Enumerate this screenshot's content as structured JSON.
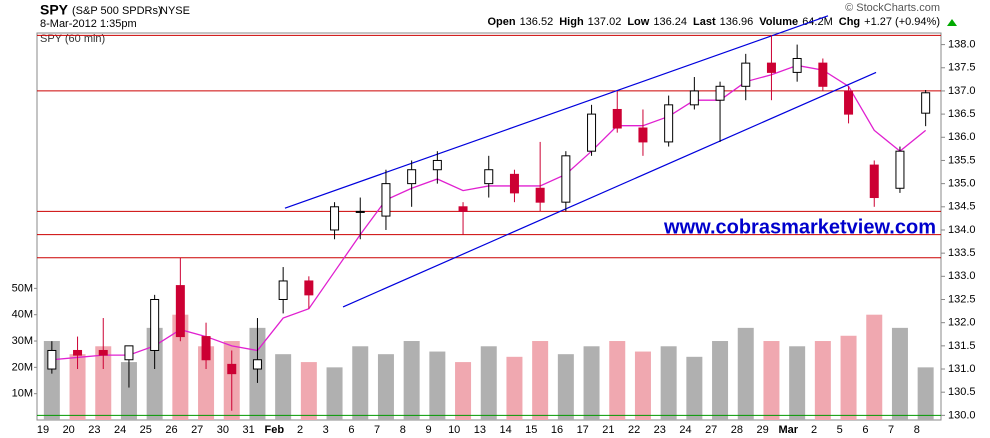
{
  "header": {
    "symbol": "SPY",
    "name": "(S&P 500 SPDRs)",
    "exchange": "NYSE",
    "date": "8-Mar-2012 1:35pm",
    "source": "© StockCharts.com",
    "quote": [
      {
        "label": "Open",
        "value": "136.52"
      },
      {
        "label": "High",
        "value": "137.02"
      },
      {
        "label": "Low",
        "value": "136.24"
      },
      {
        "label": "Last",
        "value": "136.96"
      },
      {
        "label": "Volume",
        "value": "64.2M"
      },
      {
        "label": "Chg",
        "value": "+1.27 (+0.94%)"
      }
    ]
  },
  "chart_data": {
    "type": "candlestick",
    "title": "SPY (60 min)",
    "watermark": "www.cobrasmarketview.com",
    "categories": [
      "19",
      "20",
      "23",
      "24",
      "25",
      "26",
      "27",
      "30",
      "31",
      "Feb",
      "2",
      "3",
      "6",
      "7",
      "8",
      "9",
      "10",
      "13",
      "14",
      "15",
      "16",
      "17",
      "21",
      "22",
      "23",
      "24",
      "27",
      "28",
      "29",
      "Mar",
      "2",
      "5",
      "6",
      "7",
      "8"
    ],
    "open": [
      131.0,
      131.4,
      131.4,
      131.2,
      131.4,
      132.8,
      131.7,
      131.1,
      131.0,
      132.5,
      132.9,
      134.0,
      134.4,
      134.3,
      135.0,
      135.3,
      134.5,
      135.0,
      135.2,
      134.9,
      134.6,
      135.7,
      136.6,
      136.2,
      135.9,
      136.7,
      136.8,
      137.1,
      137.6,
      137.4,
      137.6,
      137.0,
      135.4,
      134.9,
      136.52
    ],
    "high": [
      131.6,
      131.7,
      132.1,
      131.5,
      132.6,
      133.4,
      132.0,
      131.4,
      132.1,
      133.2,
      133.0,
      134.6,
      134.7,
      135.3,
      135.5,
      135.7,
      134.6,
      135.6,
      135.3,
      135.9,
      135.7,
      136.7,
      137.0,
      136.6,
      136.9,
      137.3,
      137.2,
      137.8,
      138.2,
      138.0,
      137.7,
      137.1,
      135.5,
      135.8,
      137.02
    ],
    "low": [
      130.9,
      131.0,
      131.0,
      130.6,
      131.0,
      131.6,
      131.0,
      130.1,
      130.7,
      132.2,
      132.3,
      133.8,
      133.8,
      134.0,
      134.5,
      135.0,
      133.9,
      134.7,
      134.6,
      134.4,
      134.4,
      135.6,
      136.1,
      135.6,
      135.8,
      136.6,
      135.9,
      136.8,
      136.8,
      137.2,
      137.0,
      136.3,
      134.5,
      134.8,
      136.24
    ],
    "close": [
      131.4,
      131.3,
      131.3,
      131.5,
      132.5,
      131.7,
      131.2,
      130.9,
      131.2,
      132.9,
      132.6,
      134.5,
      134.4,
      135.0,
      135.3,
      135.5,
      134.4,
      135.3,
      134.8,
      134.6,
      135.6,
      136.5,
      136.2,
      135.9,
      136.7,
      137.0,
      137.1,
      137.6,
      137.4,
      137.7,
      137.1,
      136.5,
      134.7,
      135.7,
      136.96
    ],
    "up_color": "#000000",
    "down_color": "#cc0033",
    "ylim": [
      129.9,
      138.25
    ],
    "yticks": [
      {
        "value": 130,
        "label": "130.0"
      },
      {
        "value": 130.5,
        "label": "130.5"
      },
      {
        "value": 131,
        "label": "131.0"
      },
      {
        "value": 131.5,
        "label": "131.5"
      },
      {
        "value": 132,
        "label": "132.0"
      },
      {
        "value": 132.5,
        "label": "132.5"
      },
      {
        "value": 133,
        "label": "133.0"
      },
      {
        "value": 133.5,
        "label": "133.5"
      },
      {
        "value": 134,
        "label": "134.0"
      },
      {
        "value": 134.5,
        "label": "134.5"
      },
      {
        "value": 135,
        "label": "135.0"
      },
      {
        "value": 135.5,
        "label": "135.5"
      },
      {
        "value": 136,
        "label": "136.0"
      },
      {
        "value": 136.5,
        "label": "136.5"
      },
      {
        "value": 137,
        "label": "137.0"
      },
      {
        "value": 137.5,
        "label": "137.5"
      },
      {
        "value": 138,
        "label": "138.0"
      }
    ],
    "ma": {
      "color": "#e020d0",
      "values": [
        131.2,
        131.25,
        131.3,
        131.3,
        131.5,
        131.85,
        131.7,
        131.5,
        131.4,
        132.1,
        132.3,
        133.1,
        133.9,
        134.65,
        134.9,
        135.1,
        134.85,
        134.95,
        134.95,
        134.95,
        135.2,
        135.7,
        136.25,
        136.25,
        136.45,
        136.8,
        136.8,
        137.2,
        137.35,
        137.55,
        137.45,
        137.1,
        136.15,
        135.7,
        136.15
      ]
    },
    "volume": {
      "up_color": "#b0b0b0",
      "down_color": "#f0a8b0",
      "values": [
        30,
        25,
        28,
        22,
        35,
        40,
        28,
        30,
        35,
        25,
        22,
        20,
        28,
        25,
        30,
        26,
        22,
        28,
        24,
        30,
        25,
        28,
        30,
        26,
        28,
        24,
        30,
        35,
        30,
        28,
        30,
        32,
        40,
        35,
        20
      ],
      "ylim": [
        0,
        147
      ],
      "yticks": [
        {
          "value": 10,
          "label": "10M"
        },
        {
          "value": 20,
          "label": "20M"
        },
        {
          "value": 30,
          "label": "30M"
        },
        {
          "value": 40,
          "label": "40M"
        },
        {
          "value": 50,
          "label": "50M"
        }
      ]
    },
    "hlines": [
      {
        "value": 138.2,
        "color": "#cc0000"
      },
      {
        "value": 137.0,
        "color": "#cc0000"
      },
      {
        "value": 134.4,
        "color": "#cc0000"
      },
      {
        "value": 133.9,
        "color": "#cc0000"
      },
      {
        "value": 133.4,
        "color": "#cc0000"
      },
      {
        "value": 130.0,
        "color": "#009900"
      }
    ],
    "trendlines": [
      {
        "color": "#0000dd",
        "x": [
          9.57,
          30.7
        ],
        "y": [
          134.47,
          138.62
        ]
      },
      {
        "color": "#0000dd",
        "x": [
          11.83,
          32.57
        ],
        "y": [
          132.34,
          137.4
        ]
      }
    ]
  }
}
